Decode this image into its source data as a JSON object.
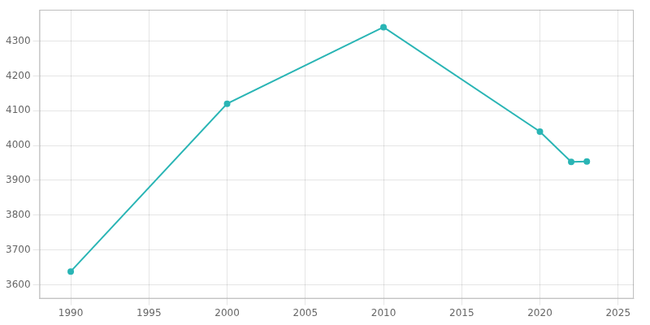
{
  "chart_data": {
    "type": "line",
    "x": [
      1990,
      2000,
      2010,
      2020,
      2022,
      2023
    ],
    "values": [
      3638,
      4120,
      4340,
      4040,
      3953,
      3954
    ],
    "color": "#2ab5b5",
    "marker": "circle",
    "xlim": [
      1988,
      2026
    ],
    "ylim": [
      3560,
      4390
    ],
    "xticks": [
      1990,
      1995,
      2000,
      2005,
      2010,
      2015,
      2020,
      2025
    ],
    "yticks": [
      3600,
      3700,
      3800,
      3900,
      4000,
      4100,
      4200,
      4300
    ],
    "grid": true
  }
}
